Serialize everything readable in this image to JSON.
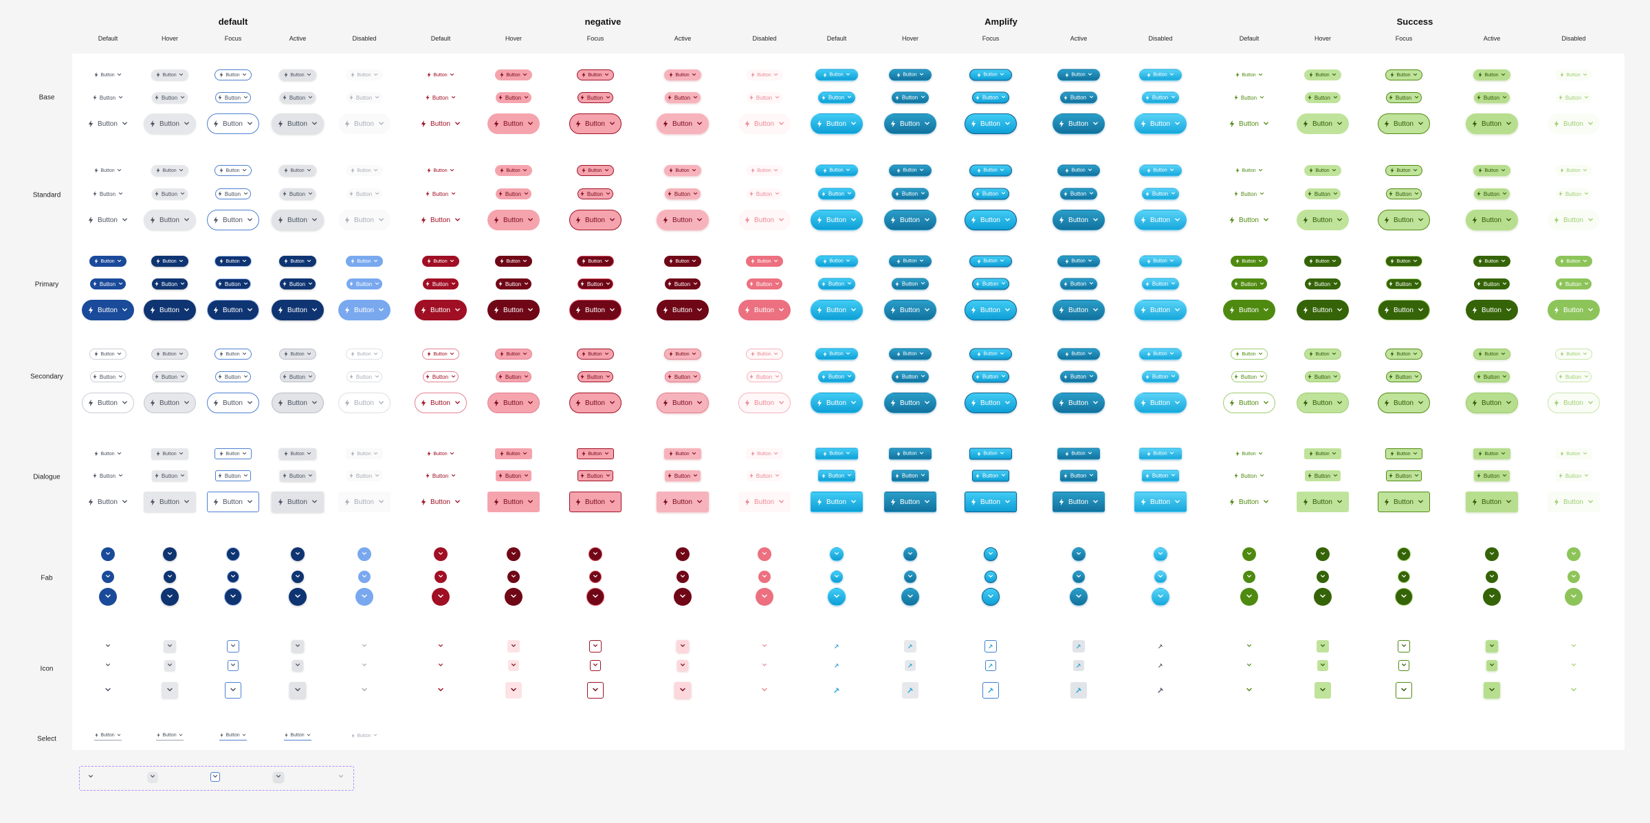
{
  "group_titles": [
    "default",
    "negative",
    "Amplify",
    "Success"
  ],
  "states": [
    "Default",
    "Hover",
    "Focus",
    "Active",
    "Disabled"
  ],
  "row_labels": [
    "Base",
    "Standard",
    "Primary",
    "Secondary",
    "Dialogue",
    "Fab",
    "Icon",
    "Select"
  ],
  "button_label": "Button",
  "icons": {
    "leading": "bolt-icon",
    "trailing": "chevron-down-icon"
  },
  "colors": {
    "default_primary": "#1a4a9a",
    "default_primary_dark": "#0f3472",
    "default_disabled_primary": "#79a8ef",
    "default_focus_border": "#4d7fd1",
    "negative": "#a00f24",
    "negative_dark": "#700717",
    "negative_light": "#f5a3ad",
    "negative_disabled": "#ec7080",
    "amplify": "#1ab4e6",
    "amplify_dark": "#1489b4",
    "success": "#4f8a10",
    "success_dark": "#356408",
    "success_light": "#bfe39a",
    "success_disabled": "#8dc45a"
  }
}
